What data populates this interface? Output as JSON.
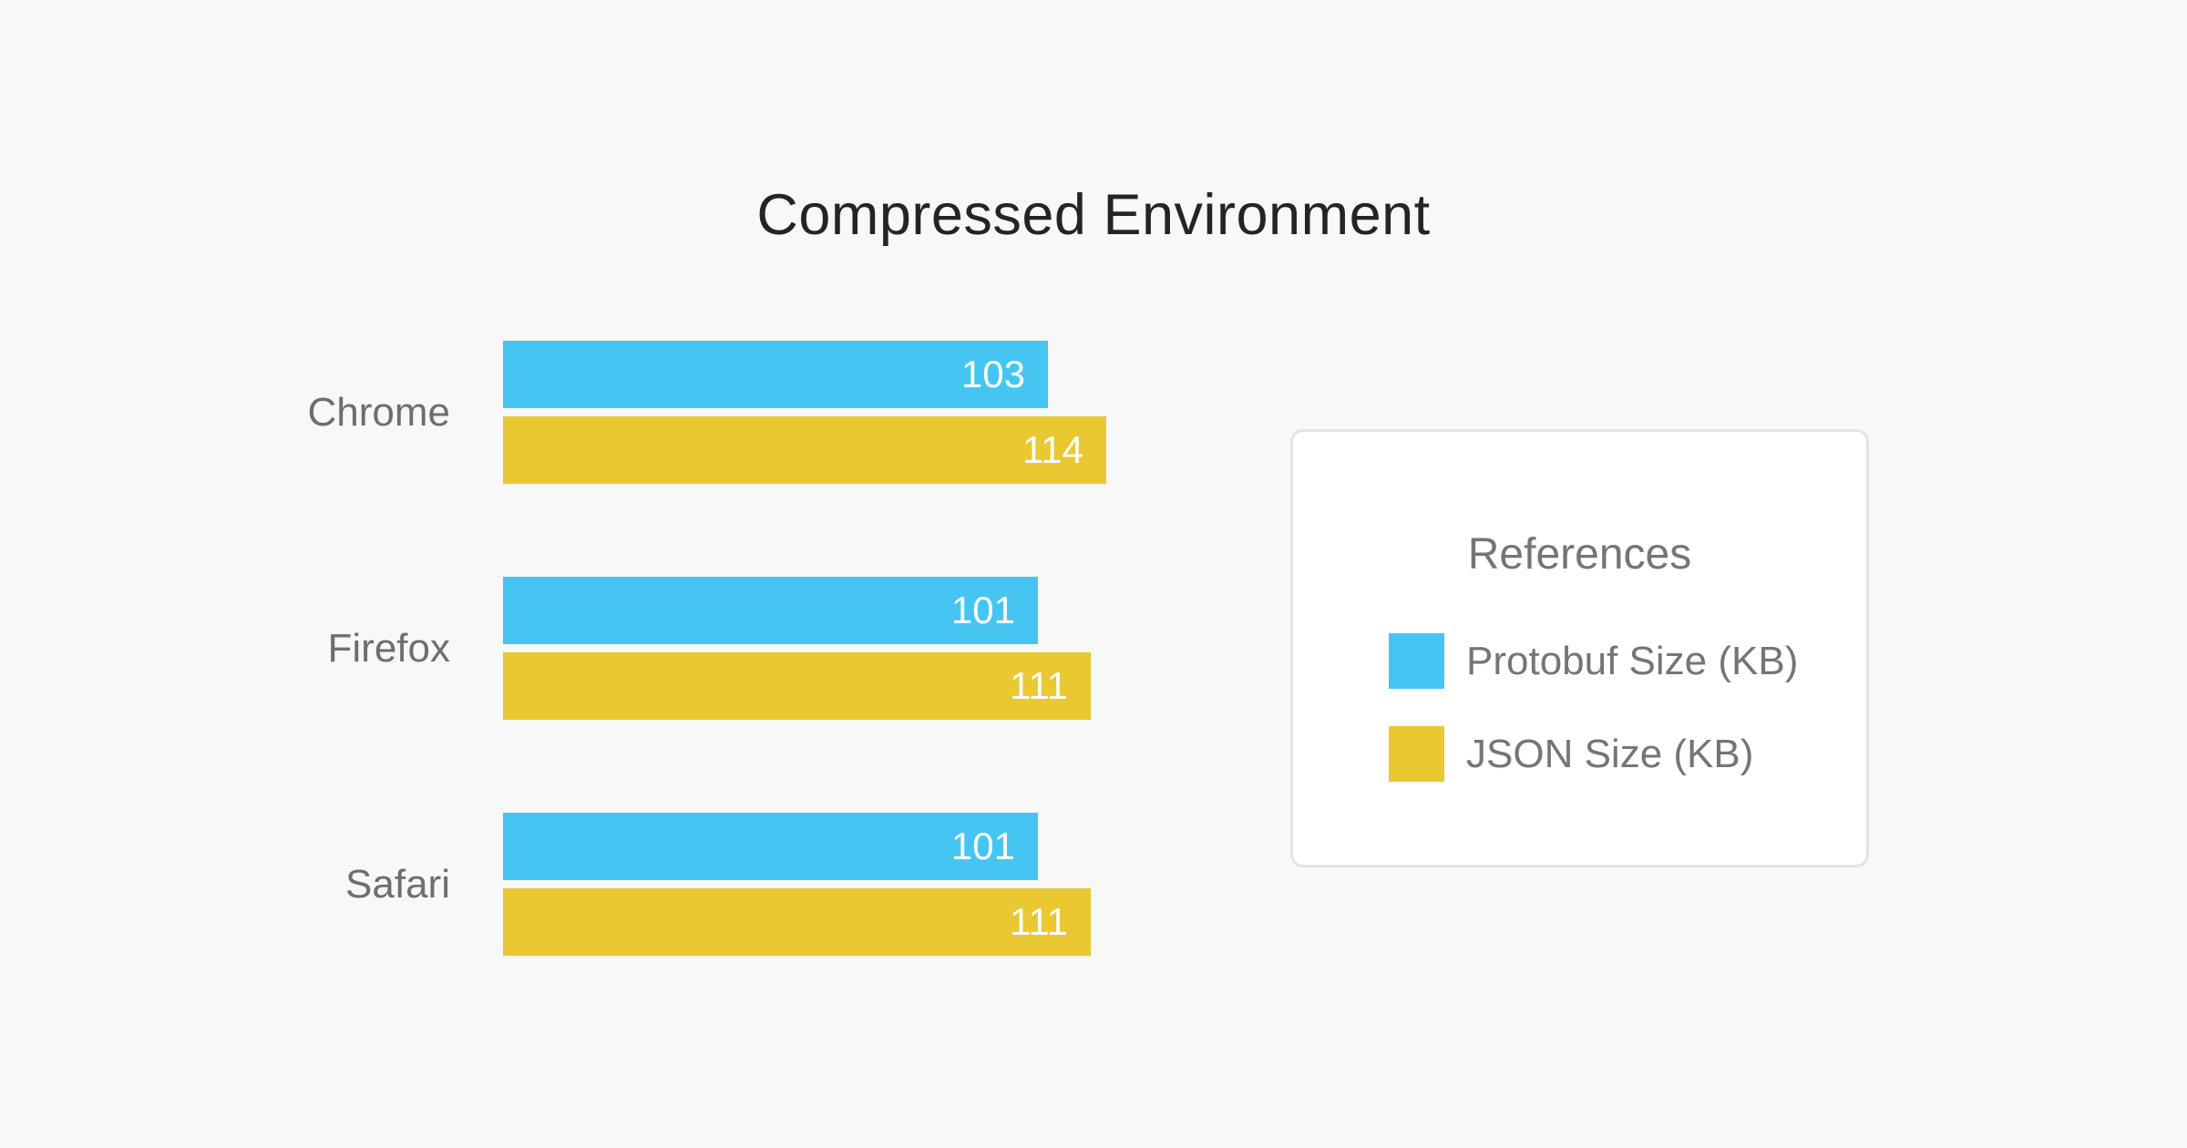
{
  "background_color": "#f8f8f8",
  "title_color": "#242424",
  "category_label_color": "#6e6e6e",
  "value_label_color": "#ffffff",
  "legend": {
    "title": "References",
    "position": "right",
    "text_color": "#757575",
    "border_color": "#e2e4e6",
    "background_color": "#ffffff"
  },
  "chart_data": {
    "type": "bar",
    "orientation": "horizontal",
    "title": "Compressed Environment",
    "categories": [
      "Chrome",
      "Firefox",
      "Safari"
    ],
    "series": [
      {
        "name": "Protobuf Size (KB)",
        "color": "#45c6f2",
        "values": [
          103,
          101,
          101
        ]
      },
      {
        "name": "JSON Size (KB)",
        "color": "#e9c831",
        "values": [
          114,
          111,
          111
        ]
      }
    ],
    "value_labels_shown": true,
    "axes_shown": false,
    "grid": false,
    "xlim": [
      0,
      120
    ],
    "legend_position": "right"
  }
}
